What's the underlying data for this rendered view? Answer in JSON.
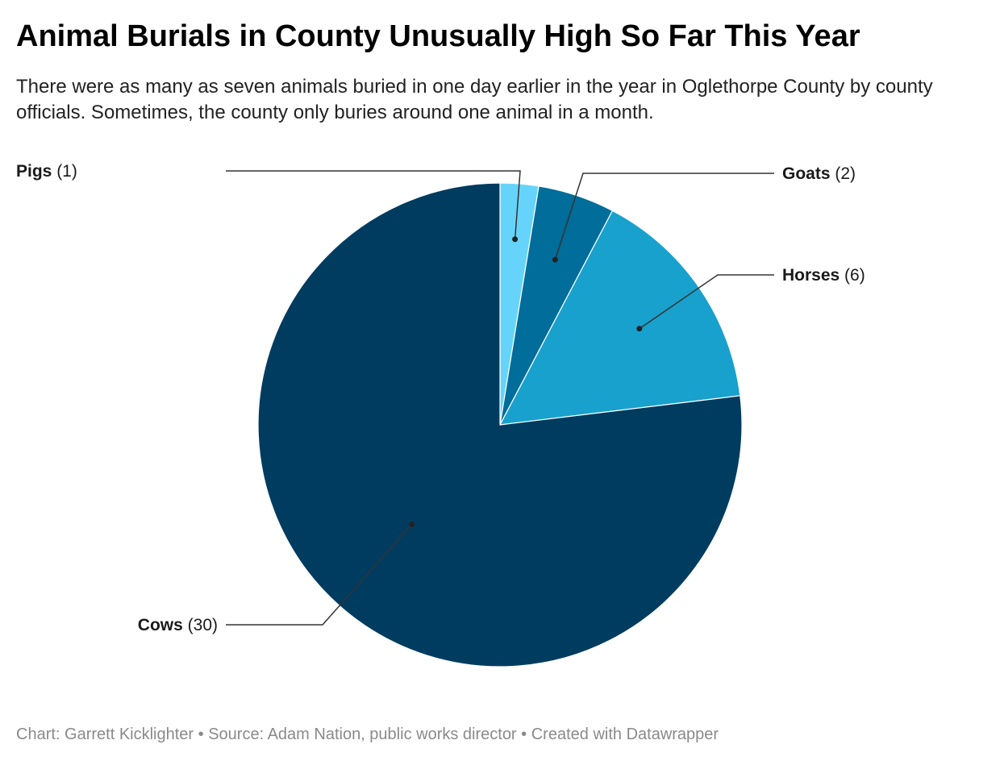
{
  "title": "Animal Burials in County Unusually High So Far This Year",
  "subtitle": "There were as many as seven animals buried in one day earlier in the year in Oglethorpe County by county officials. Sometimes, the county only buries around one animal in a month.",
  "footer": {
    "credit": "Chart: Garrett Kicklighter",
    "source": "Source: Adam Nation, public works director",
    "tool": "Created with Datawrapper",
    "separator": " • "
  },
  "chart_data": {
    "type": "pie",
    "title": "Animal Burials in County Unusually High So Far This Year",
    "slices": [
      {
        "label": "Pigs",
        "value": 1,
        "value_text": "(1)",
        "color": "#66d4fa",
        "label_side": "left"
      },
      {
        "label": "Goats",
        "value": 2,
        "value_text": "(2)",
        "color": "#006d9a",
        "label_side": "right"
      },
      {
        "label": "Horses",
        "value": 6,
        "value_text": "(6)",
        "color": "#18a1cd",
        "label_side": "right"
      },
      {
        "label": "Cows",
        "value": 30,
        "value_text": "(30)",
        "color": "#003c60",
        "label_side": "left"
      }
    ],
    "start_angle": "12 o'clock",
    "direction": "clockwise",
    "legend": "none",
    "labels": "external with leader lines"
  }
}
